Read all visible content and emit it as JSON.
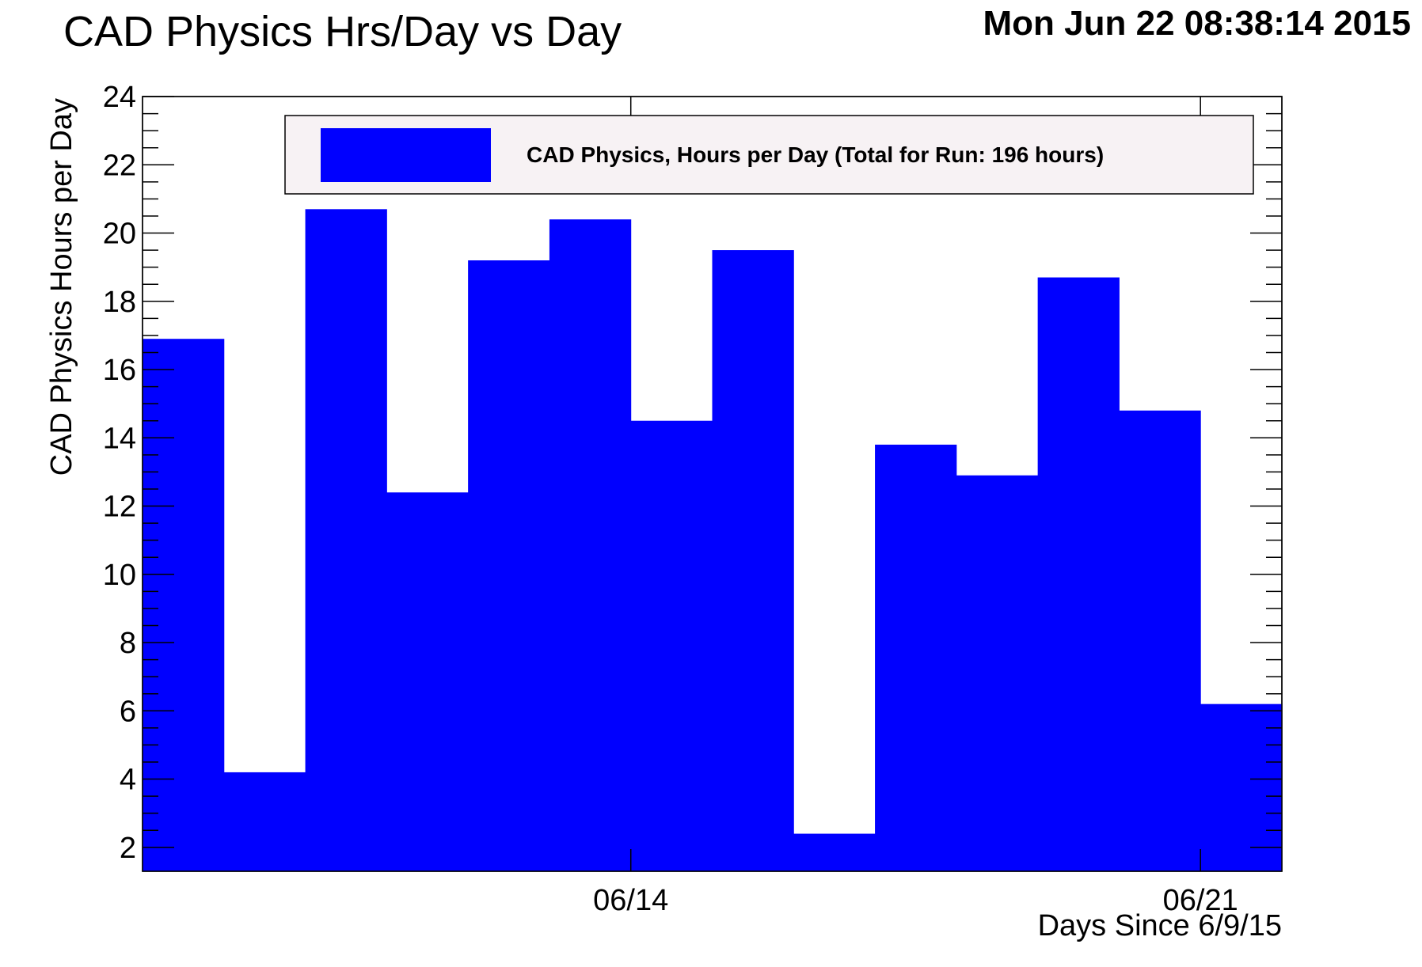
{
  "chart_data": {
    "type": "bar",
    "title": "CAD Physics Hrs/Day vs Day",
    "timestamp": "Mon Jun 22 08:38:14 2015",
    "xlabel": "Days Since 6/9/15",
    "ylabel": "CAD Physics Hours per Day",
    "x_tick_labels": [
      {
        "day": 5.5,
        "label": "06/14"
      },
      {
        "day": 12.5,
        "label": "06/21"
      }
    ],
    "xlim": [
      -0.5,
      13.5
    ],
    "ylim": [
      1.3,
      24
    ],
    "y_ticks": [
      2,
      4,
      6,
      8,
      10,
      12,
      14,
      16,
      18,
      20,
      22,
      24
    ],
    "grid": false,
    "legend": {
      "position": "top",
      "entries": [
        "CAD Physics, Hours per Day (Total for Run: 196 hours)"
      ]
    },
    "series": [
      {
        "name": "CAD Physics, Hours per Day (Total for Run: 196 hours)",
        "color": "#0000ff",
        "days": [
          0,
          1,
          2,
          3,
          4,
          5,
          6,
          7,
          8,
          9,
          10,
          11,
          12,
          13
        ],
        "values": [
          16.9,
          4.2,
          20.7,
          12.4,
          19.2,
          20.4,
          14.5,
          19.5,
          2.4,
          13.8,
          12.9,
          18.7,
          14.8,
          6.2
        ]
      }
    ]
  }
}
